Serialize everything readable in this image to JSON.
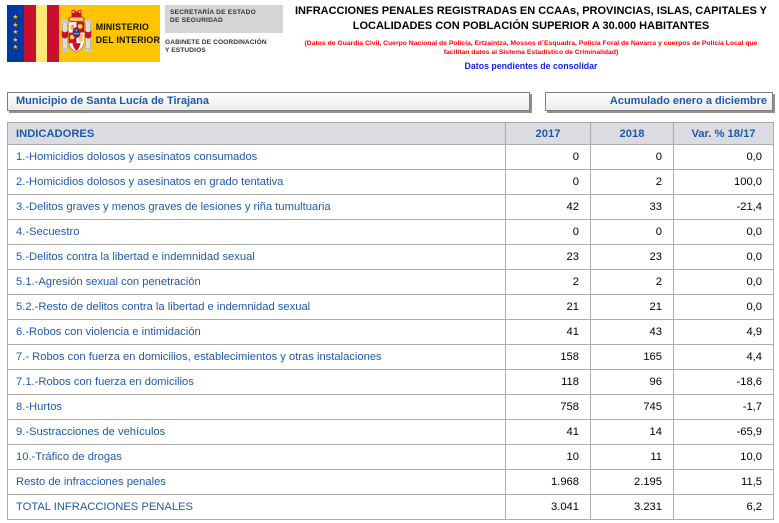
{
  "header": {
    "ministry_line1": "MINISTERIO",
    "ministry_line2": "DEL INTERIOR",
    "secretaria": "SECRETARÍA DE ESTADO DE SEGURIDAD",
    "gabinete": "GABINETE DE COORDINACIÓN Y ESTUDIOS",
    "title": "INFRACCIONES PENALES REGISTRADAS EN CCAAs, PROVINCIAS, ISLAS, CAPITALES Y LOCALIDADES CON POBLACIÓN SUPERIOR A 30.000 HABITANTES",
    "source_note": "(Datos de Guardia Civil, Cuerpo Nacional de Policía, Ertzaintza, Mossos d´Esquadra, Policía Foral de Navarra y cuerpos de Policía Local que facilitan datos al Sistema Estadístico de Criminalidad)",
    "status_note": "Datos pendientes de consolidar"
  },
  "filters": {
    "municipality": "Municipio de Santa Lucía de Tirajana",
    "period": "Acumulado enero a diciembre"
  },
  "colors": {
    "accent_blue": "#1F5AA8",
    "note_red": "#FF0000",
    "note_blue": "#1023DF",
    "header_bg": "#DBDBE2",
    "logo_yellow": "#FFC400"
  },
  "table": {
    "columns": [
      "INDICADORES",
      "2017",
      "2018",
      "Var. % 18/17"
    ],
    "rows": [
      {
        "label": "1.-Homicidios dolosos y asesinatos consumados",
        "y2017": "0",
        "y2018": "0",
        "var": "0,0"
      },
      {
        "label": "2.-Homicidios dolosos y asesinatos en grado tentativa",
        "y2017": "0",
        "y2018": "2",
        "var": "100,0"
      },
      {
        "label": "3.-Delitos graves y menos graves de lesiones y riña tumultuaria",
        "y2017": "42",
        "y2018": "33",
        "var": "-21,4"
      },
      {
        "label": "4.-Secuestro",
        "y2017": "0",
        "y2018": "0",
        "var": "0,0"
      },
      {
        "label": "5.-Delitos contra la libertad e indemnidad sexual",
        "y2017": "23",
        "y2018": "23",
        "var": "0,0"
      },
      {
        "label": "5.1.-Agresión sexual con penetración",
        "y2017": "2",
        "y2018": "2",
        "var": "0,0"
      },
      {
        "label": "5.2.-Resto de delitos contra la libertad e indemnidad sexual",
        "y2017": "21",
        "y2018": "21",
        "var": "0,0"
      },
      {
        "label": "6.-Robos con violencia e intimidación",
        "y2017": "41",
        "y2018": "43",
        "var": "4,9"
      },
      {
        "label": "7.- Robos con fuerza en domicilios, establecimientos y otras instalaciones",
        "y2017": "158",
        "y2018": "165",
        "var": "4,4"
      },
      {
        "label": "7.1.-Robos con fuerza en domicilios",
        "y2017": "118",
        "y2018": "96",
        "var": "-18,6"
      },
      {
        "label": "8.-Hurtos",
        "y2017": "758",
        "y2018": "745",
        "var": "-1,7"
      },
      {
        "label": "9.-Sustracciones de vehículos",
        "y2017": "41",
        "y2018": "14",
        "var": "-65,9"
      },
      {
        "label": "10.-Tráfico de drogas",
        "y2017": "10",
        "y2018": "11",
        "var": "10,0"
      },
      {
        "label": "Resto de infracciones penales",
        "y2017": "1.968",
        "y2018": "2.195",
        "var": "11,5"
      },
      {
        "label": "TOTAL INFRACCIONES PENALES",
        "y2017": "3.041",
        "y2018": "3.231",
        "var": "6,2"
      }
    ]
  }
}
